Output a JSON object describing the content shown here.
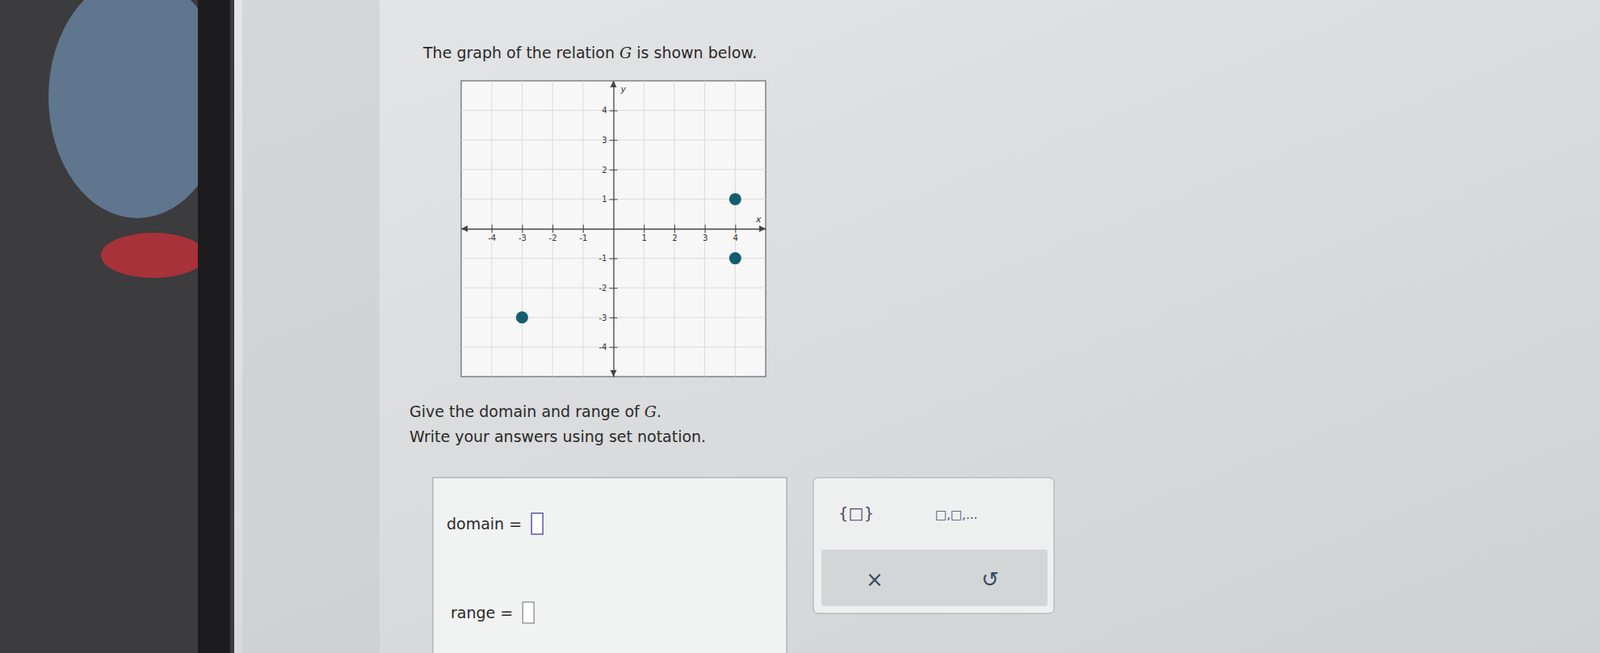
{
  "chart_data": {
    "type": "scatter",
    "x": [
      4,
      4,
      -3
    ],
    "values": [
      1,
      -1,
      -3
    ],
    "color": "#125e6e",
    "marker": "circle",
    "xlim": [
      -5,
      5
    ],
    "ylim": [
      -5,
      5
    ],
    "xticks": [
      -4,
      -3,
      -2,
      -1,
      1,
      2,
      3,
      4
    ],
    "yticks": [
      -4,
      -3,
      -2,
      -1,
      1,
      2,
      3,
      4
    ],
    "grid": true,
    "x_label": "x",
    "y_label": "y"
  },
  "page": {
    "prompt": [
      "The graph of the relation ",
      "G",
      " is shown below."
    ],
    "question": [
      "Give the domain and range of ",
      "G",
      "."
    ],
    "instruction": "Write your answers using set notation.",
    "fields": [
      "domain =",
      "range ="
    ],
    "tools": [
      "{□}",
      "□,□,..."
    ],
    "actions": [
      "×",
      "↺"
    ]
  }
}
